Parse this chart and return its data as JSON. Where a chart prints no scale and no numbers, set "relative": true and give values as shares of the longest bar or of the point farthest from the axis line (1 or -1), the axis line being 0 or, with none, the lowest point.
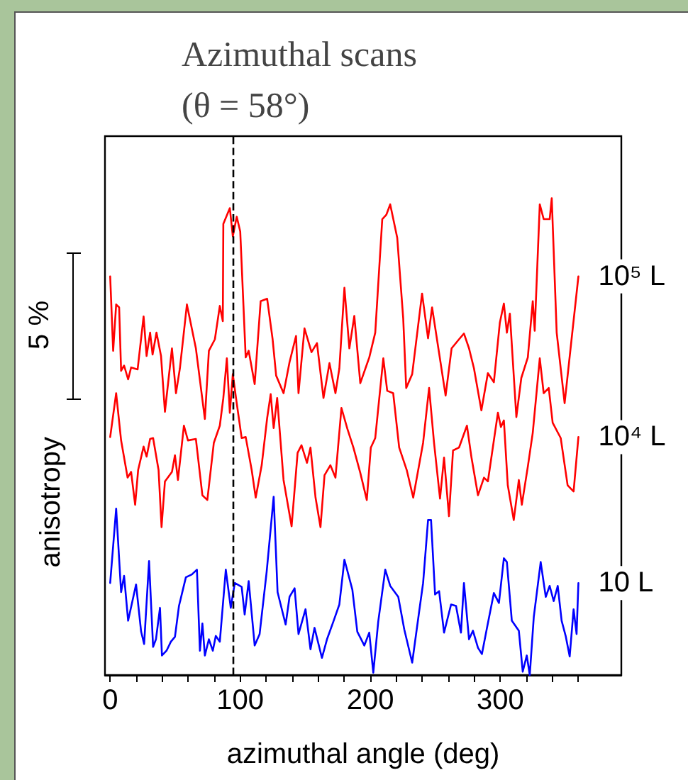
{
  "chart_data": {
    "type": "line",
    "title": "Azimuthal scans\n(θ = 58°)",
    "xlabel": "azimuthal angle (deg)",
    "ylabel": "anisotropy",
    "relative": true,
    "marker": "none",
    "line_style": "solid",
    "xlim": [
      -4,
      393
    ],
    "xticks": [
      0,
      {
        "value": 20,
        "label": null
      },
      {
        "value": 40,
        "label": null
      },
      {
        "value": 60,
        "label": null
      },
      {
        "value": 80,
        "label": null
      },
      100,
      {
        "value": 120,
        "label": null
      },
      {
        "value": 140,
        "label": null
      },
      {
        "value": 160,
        "label": null
      },
      {
        "value": 180,
        "label": null
      },
      200,
      {
        "value": 220,
        "label": null
      },
      {
        "value": 240,
        "label": null
      },
      {
        "value": 260,
        "label": null
      },
      {
        "value": 280,
        "label": null
      },
      300,
      {
        "value": 320,
        "label": null
      },
      {
        "value": 340,
        "label": null
      },
      {
        "value": 360,
        "label": null
      }
    ],
    "annotations": [
      "5 %"
    ],
    "ref_lines": [
      {
        "axis": "x",
        "value": 94,
        "label": null,
        "color": "#000000",
        "line_style": "dashed"
      }
    ],
    "series": [
      {
        "name": "10⁵ L",
        "color": "#ff0000",
        "x": [
          0,
          2.3,
          4.6,
          6.9,
          8.4,
          10.7,
          13.8,
          16.1,
          21.1,
          25.7,
          28,
          30.7,
          32.6,
          35.6,
          39.1,
          42.1,
          47.5,
          50.6,
          53.6,
          59,
          65.9,
          72.8,
          75.9,
          80.5,
          84.3,
          86.6,
          87,
          92,
          94.3,
          97.3,
          100,
          104.2,
          106.5,
          111.1,
          115.7,
          120.7,
          124.9,
          127.6,
          133.3,
          137.9,
          142.9,
          144.8,
          149.4,
          154.8,
          159,
          164,
          168.6,
          173.2,
          176.2,
          180.1,
          183.9,
          187.7,
          192.3,
          199.2,
          203.8,
          209.2,
          212.3,
          215.3,
          220.7,
          225.3,
          227.6,
          232.2,
          239.8,
          244.4,
          247.5,
          252.9,
          257.9,
          262.5,
          268.2,
          272,
          275.9,
          279.7,
          285.4,
          290.4,
          295,
          299.6,
          302.7,
          305,
          307.3,
          312.3,
          316.1,
          321.1,
          324.9,
          326.4,
          330.3,
          333.3,
          337.9,
          339.5,
          343.3,
          349.4,
          360
        ],
        "values": [
          0.836,
          0.68,
          0.777,
          0.771,
          0.638,
          0.649,
          0.62,
          0.645,
          0.641,
          0.752,
          0.669,
          0.718,
          0.672,
          0.718,
          0.669,
          0.552,
          0.685,
          0.591,
          0.643,
          0.777,
          0.685,
          0.537,
          0.68,
          0.704,
          0.774,
          0.742,
          0.946,
          0.979,
          0.92,
          0.961,
          0.93,
          0.666,
          0.68,
          0.61,
          0.784,
          0.789,
          0.704,
          0.628,
          0.591,
          0.656,
          0.711,
          0.591,
          0.727,
          0.677,
          0.696,
          0.581,
          0.654,
          0.591,
          0.643,
          0.812,
          0.685,
          0.753,
          0.612,
          0.666,
          0.718,
          0.956,
          0.965,
          0.987,
          0.917,
          0.748,
          0.602,
          0.631,
          0.8,
          0.706,
          0.771,
          0.675,
          0.586,
          0.685,
          0.704,
          0.716,
          0.685,
          0.643,
          0.555,
          0.633,
          0.614,
          0.739,
          0.779,
          0.718,
          0.758,
          0.541,
          0.623,
          0.666,
          0.784,
          0.722,
          0.987,
          0.956,
          0.956,
          1,
          0.718,
          0.57,
          0.836
        ]
      },
      {
        "name": "10⁴ L",
        "color": "#ff0000",
        "x": [
          0,
          4.6,
          8.4,
          13.4,
          16.1,
          19.2,
          21.5,
          25.7,
          28,
          30.7,
          33,
          37.2,
          39.5,
          42.1,
          47.5,
          49.8,
          52.1,
          56.7,
          59.8,
          65.9,
          70.9,
          74.7,
          79.7,
          84.3,
          87,
          89.7,
          92,
          94.3,
          97.3,
          101.1,
          104.2,
          108.8,
          111.9,
          116.5,
          120.7,
          123.4,
          125.7,
          128.4,
          133.3,
          139.5,
          144.1,
          147.1,
          151.3,
          154,
          157.9,
          161.7,
          164.8,
          169.3,
          173.2,
          177.8,
          182.4,
          187,
          192.3,
          197.3,
          200.4,
          203.8,
          210,
          213,
          217.6,
          222.2,
          228,
          233,
          240.6,
          245.2,
          249,
          253.6,
          256.7,
          260.5,
          263.6,
          268.2,
          274.3,
          277.8,
          282.8,
          287.4,
          290.4,
          298.1,
          300.4,
          302.7,
          305.7,
          310.3,
          314.2,
          316.5,
          321.1,
          324.9,
          330.3,
          333.3,
          337.2,
          340.2,
          346.4,
          351.7,
          356.3,
          360
        ],
        "values": [
          0.499,
          0.591,
          0.492,
          0.414,
          0.426,
          0.357,
          0.43,
          0.479,
          0.458,
          0.495,
          0.497,
          0.43,
          0.31,
          0.406,
          0.426,
          0.461,
          0.409,
          0.523,
          0.492,
          0.495,
          0.377,
          0.367,
          0.487,
          0.523,
          0.581,
          0.664,
          0.55,
          0.631,
          0.57,
          0.497,
          0.499,
          0.43,
          0.372,
          0.44,
          0.539,
          0.589,
          0.518,
          0.581,
          0.409,
          0.312,
          0.466,
          0.482,
          0.445,
          0.477,
          0.372,
          0.31,
          0.419,
          0.44,
          0.414,
          0.56,
          0.516,
          0.477,
          0.424,
          0.367,
          0.477,
          0.497,
          0.664,
          0.596,
          0.591,
          0.477,
          0.43,
          0.372,
          0.487,
          0.602,
          0.487,
          0.37,
          0.456,
          0.333,
          0.471,
          0.477,
          0.523,
          0.456,
          0.377,
          0.414,
          0.406,
          0.55,
          0.52,
          0.534,
          0.398,
          0.325,
          0.409,
          0.357,
          0.437,
          0.508,
          0.664,
          0.591,
          0.602,
          0.529,
          0.497,
          0.398,
          0.385,
          0.499
        ]
      },
      {
        "name": "10 L",
        "color": "#0000ff",
        "x": [
          0,
          4.6,
          8.4,
          10.7,
          13.8,
          19.9,
          23.8,
          26.1,
          29.9,
          33,
          35.2,
          38.3,
          39.8,
          43.3,
          46.7,
          49.8,
          52.9,
          58.2,
          62.8,
          66.7,
          69,
          70.9,
          72.8,
          75.9,
          78.9,
          81.2,
          84.3,
          88.9,
          92.7,
          95.8,
          101.1,
          103.4,
          106.5,
          111.1,
          114.9,
          120.3,
          125.7,
          128.7,
          134.9,
          137.9,
          141.8,
          144.8,
          150.2,
          154,
          157.1,
          162.8,
          166.7,
          171.6,
          176.2,
          180.1,
          186.2,
          190,
          195.4,
          199.2,
          202.3,
          206.1,
          211.5,
          215.3,
          221.5,
          226.1,
          232.2,
          237.5,
          240.6,
          244.4,
          246.7,
          249.8,
          252.9,
          256.7,
          262.1,
          265.9,
          269.7,
          272,
          275.9,
          278.9,
          282.8,
          285.8,
          289.7,
          295,
          298.9,
          302.7,
          305,
          308.8,
          314.2,
          317.2,
          320.3,
          322.6,
          325.7,
          331,
          334.9,
          337.9,
          341,
          344.1,
          347.1,
          350.2,
          353.3,
          356.3,
          358.6,
          360
        ],
        "values": [
          0.193,
          0.349,
          0.174,
          0.208,
          0.114,
          0.19,
          0.091,
          0.065,
          0.239,
          0.059,
          0.075,
          0.141,
          0.041,
          0.051,
          0.07,
          0.08,
          0.145,
          0.205,
          0.211,
          0.221,
          0.051,
          0.108,
          0.041,
          0.075,
          0.051,
          0.082,
          0.07,
          0.221,
          0.141,
          0.193,
          0.185,
          0.127,
          0.197,
          0.062,
          0.086,
          0.216,
          0.374,
          0.174,
          0.106,
          0.164,
          0.182,
          0.086,
          0.138,
          0.054,
          0.099,
          0.036,
          0.075,
          0.112,
          0.148,
          0.242,
          0.179,
          0.091,
          0.062,
          0.089,
          0.005,
          0.112,
          0.221,
          0.187,
          0.164,
          0.096,
          0.026,
          0.132,
          0.193,
          0.325,
          0.325,
          0.169,
          0.176,
          0.089,
          0.148,
          0.145,
          0.089,
          0.193,
          0.075,
          0.093,
          0.057,
          0.044,
          0.099,
          0.172,
          0.151,
          0.245,
          0.237,
          0.114,
          0.093,
          0.007,
          0.041,
          0,
          0.122,
          0.237,
          0.164,
          0.187,
          0.155,
          0.187,
          0.114,
          0.082,
          0.039,
          0.138,
          0.086,
          0.193
        ]
      }
    ]
  }
}
